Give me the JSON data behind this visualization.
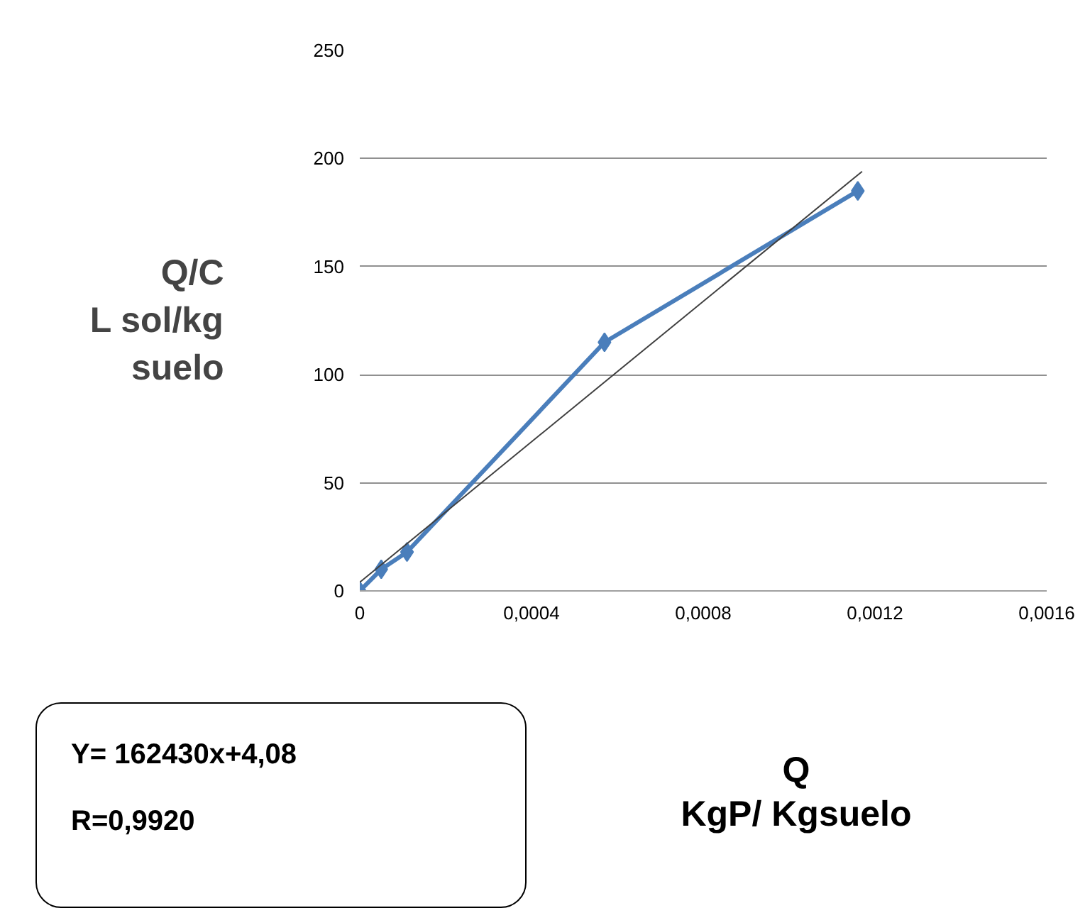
{
  "chart_data": {
    "type": "line",
    "ylabel": "Q/C\nL sol/kg\nsuelo",
    "xlabel": "Q\nKgP/ Kgsuelo",
    "series": [
      {
        "color": "#4a7ebb",
        "marker": "diamond",
        "x": [
          0,
          5e-05,
          0.00011,
          0.00057,
          0.00116
        ],
        "values": [
          0,
          10,
          18,
          115,
          185
        ]
      },
      {
        "color": "#404040",
        "marker": "none",
        "x": [
          0,
          0.00117
        ],
        "values": [
          4,
          194
        ]
      }
    ],
    "xlim": [
      0,
      0.0016
    ],
    "xticks": [
      0,
      {
        "value": 0.0004,
        "label": "0,0004"
      },
      {
        "value": 0.0008,
        "label": "0,0008"
      },
      {
        "value": 0.0012,
        "label": "0,0012"
      },
      {
        "value": 0.0016,
        "label": "0,0016"
      }
    ],
    "ylim": [
      0,
      250
    ],
    "yticks": [
      0,
      50,
      100,
      150,
      200,
      250
    ],
    "grid": "y",
    "annotations": [
      "Y= 162430x+4,08",
      "R=0,9920"
    ]
  }
}
